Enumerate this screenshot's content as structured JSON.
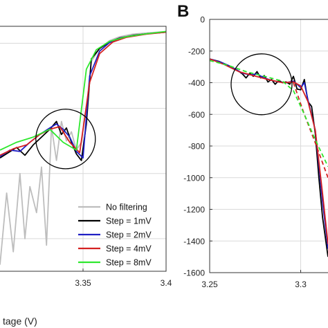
{
  "chart_data": [
    {
      "type": "line",
      "panel": "A",
      "panel_label": "",
      "xlabel": "tage (V)",
      "ylabel": "",
      "xlim": [
        3.3,
        3.4
      ],
      "x_ticks": [
        3.35,
        3.4
      ],
      "x_tick_labels": [
        "3.35",
        "3.4"
      ],
      "grid": true,
      "legend_position": "bottom-right",
      "annotation": "circle around local peak near 3.34 V",
      "series": [
        {
          "name": "No filtering",
          "color": "#bdbdbd",
          "x": [
            3.3,
            3.304,
            3.308,
            3.312,
            3.315,
            3.318,
            3.322,
            3.325,
            3.328,
            3.331,
            3.334,
            3.337,
            3.34,
            3.343,
            3.346,
            3.349,
            3.352,
            3.355,
            3.36,
            3.366,
            3.372,
            3.38,
            3.39,
            3.4
          ],
          "y": [
            -1700,
            -1150,
            -1600,
            -1000,
            -1500,
            -1100,
            -1300,
            -950,
            -1550,
            -640,
            -900,
            -600,
            -750,
            -680,
            -820,
            -760,
            -500,
            -140,
            -40,
            20,
            50,
            70,
            80,
            90
          ]
        },
        {
          "name": "Step = 1mV",
          "color": "#000000",
          "x": [
            3.3,
            3.305,
            3.31,
            3.315,
            3.32,
            3.325,
            3.33,
            3.334,
            3.337,
            3.34,
            3.343,
            3.346,
            3.349,
            3.352,
            3.355,
            3.36,
            3.366,
            3.372,
            3.38,
            3.39,
            3.4
          ],
          "y": [
            -880,
            -840,
            -800,
            -860,
            -780,
            -720,
            -660,
            -600,
            -700,
            -650,
            -760,
            -850,
            -900,
            -620,
            -120,
            -40,
            10,
            40,
            60,
            75,
            85
          ]
        },
        {
          "name": "Step = 2mV",
          "color": "#1f1fc4",
          "x": [
            3.3,
            3.306,
            3.312,
            3.318,
            3.324,
            3.33,
            3.334,
            3.338,
            3.342,
            3.346,
            3.35,
            3.354,
            3.36,
            3.366,
            3.372,
            3.38,
            3.39,
            3.4
          ],
          "y": [
            -870,
            -820,
            -830,
            -760,
            -700,
            -650,
            -620,
            -660,
            -720,
            -830,
            -880,
            -250,
            -60,
            5,
            38,
            58,
            74,
            85
          ]
        },
        {
          "name": "Step = 4mV",
          "color": "#d42020",
          "x": [
            3.3,
            3.308,
            3.316,
            3.324,
            3.33,
            3.336,
            3.342,
            3.348,
            3.354,
            3.36,
            3.368,
            3.376,
            3.388,
            3.4
          ],
          "y": [
            -860,
            -810,
            -780,
            -700,
            -660,
            -640,
            -760,
            -840,
            -300,
            -80,
            10,
            45,
            70,
            85
          ]
        },
        {
          "name": "Step = 8mV",
          "color": "#2ee82e",
          "x": [
            3.3,
            3.31,
            3.32,
            3.33,
            3.338,
            3.346,
            3.352,
            3.358,
            3.366,
            3.376,
            3.388,
            3.4
          ],
          "y": [
            -820,
            -760,
            -720,
            -660,
            -760,
            -820,
            -200,
            -50,
            15,
            50,
            72,
            90
          ]
        }
      ]
    },
    {
      "type": "line",
      "panel": "B",
      "panel_label": "B",
      "xlabel": "",
      "ylabel": "",
      "xlim": [
        3.25,
        3.315
      ],
      "ylim": [
        -1600,
        0
      ],
      "x_ticks": [
        3.25,
        3.3
      ],
      "x_tick_labels": [
        "3.25",
        "3.3"
      ],
      "y_ticks": [
        0,
        -200,
        -400,
        -600,
        -800,
        -1000,
        -1200,
        -1400,
        -1600
      ],
      "y_tick_labels": [
        "0",
        "-200",
        "-400",
        "-600",
        "-800",
        "-1000",
        "-1200",
        "-1400",
        "-1600"
      ],
      "grid": true,
      "annotation": "circle around local bump near 3.28 V",
      "series": [
        {
          "color": "#000000",
          "x": [
            3.25,
            3.255,
            3.26,
            3.265,
            3.268,
            3.27,
            3.272,
            3.274,
            3.276,
            3.278,
            3.28,
            3.282,
            3.284,
            3.286,
            3.288,
            3.29,
            3.292,
            3.294,
            3.296,
            3.298,
            3.3,
            3.302,
            3.304,
            3.306,
            3.308,
            3.31,
            3.312,
            3.315
          ],
          "y": [
            -250,
            -265,
            -290,
            -320,
            -345,
            -370,
            -340,
            -360,
            -330,
            -370,
            -355,
            -395,
            -380,
            -410,
            -385,
            -400,
            -395,
            -410,
            -360,
            -440,
            -445,
            -380,
            -520,
            -550,
            -720,
            -1000,
            -1250,
            -1500
          ]
        },
        {
          "color": "#1f1fc4",
          "x": [
            3.25,
            3.256,
            3.262,
            3.268,
            3.272,
            3.276,
            3.28,
            3.284,
            3.288,
            3.292,
            3.296,
            3.298,
            3.3,
            3.302,
            3.304,
            3.308,
            3.312,
            3.315
          ],
          "y": [
            -250,
            -270,
            -300,
            -340,
            -350,
            -345,
            -370,
            -385,
            -395,
            -400,
            -390,
            -410,
            -430,
            -400,
            -510,
            -700,
            -1150,
            -1450
          ]
        },
        {
          "color": "#d42020",
          "x": [
            3.25,
            3.258,
            3.266,
            3.274,
            3.282,
            3.29,
            3.296,
            3.3,
            3.304,
            3.308,
            3.312,
            3.315
          ],
          "y": [
            -250,
            -285,
            -330,
            -355,
            -380,
            -400,
            -395,
            -420,
            -520,
            -700,
            -1100,
            -1420
          ]
        },
        {
          "color": "#d42020",
          "dashed": true,
          "x": [
            3.296,
            3.302,
            3.308,
            3.315
          ],
          "y": [
            -400,
            -600,
            -780,
            -1000
          ]
        },
        {
          "color": "#2ee82e",
          "dashed": true,
          "x": [
            3.25,
            3.26,
            3.27,
            3.28,
            3.29,
            3.296,
            3.302,
            3.308,
            3.315
          ],
          "y": [
            -260,
            -290,
            -330,
            -360,
            -390,
            -450,
            -600,
            -760,
            -930
          ]
        }
      ]
    }
  ]
}
